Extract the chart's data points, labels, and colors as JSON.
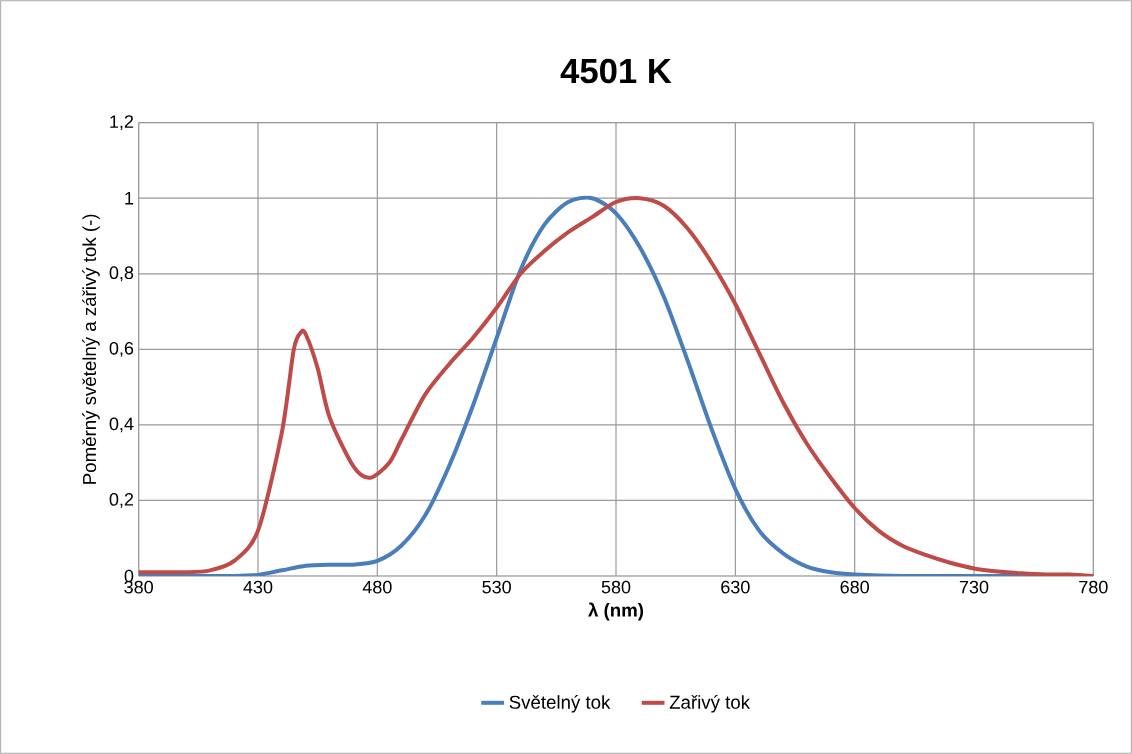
{
  "chart_data": {
    "type": "line",
    "title": "4501 K",
    "xlabel": "λ (nm)",
    "ylabel": "Poměrný světelný a zářivý tok (-)",
    "xlim": [
      380,
      780
    ],
    "xticks": [
      380,
      430,
      480,
      530,
      580,
      630,
      680,
      730,
      780
    ],
    "ylim": [
      0,
      1.2
    ],
    "yticks": [
      0,
      {
        "value": 0.2,
        "label": "0,2"
      },
      {
        "value": 0.4,
        "label": "0,4"
      },
      {
        "value": 0.6,
        "label": "0,6"
      },
      {
        "value": 0.8,
        "label": "0,8"
      },
      1,
      {
        "value": 1.2,
        "label": "1,2"
      }
    ],
    "grid": true,
    "legend": "bottom",
    "marker": "none",
    "line_style": "solid",
    "series": [
      {
        "name": "Světelný tok",
        "color": "#4a7ebb",
        "x": [
          380,
          400,
          420,
          430,
          440,
          450,
          460,
          470,
          480,
          490,
          500,
          510,
          520,
          530,
          540,
          550,
          560,
          570,
          580,
          590,
          600,
          610,
          620,
          630,
          640,
          650,
          660,
          670,
          680,
          700,
          740,
          780
        ],
        "values": [
          0,
          0,
          0,
          0.003,
          0.015,
          0.027,
          0.03,
          0.03,
          0.04,
          0.08,
          0.16,
          0.29,
          0.45,
          0.63,
          0.81,
          0.93,
          0.99,
          1.0,
          0.96,
          0.87,
          0.74,
          0.57,
          0.39,
          0.23,
          0.12,
          0.06,
          0.025,
          0.01,
          0.004,
          0,
          0,
          0
        ]
      },
      {
        "name": "Zařivý tok",
        "color": "#be4b48",
        "x": [
          380,
          400,
          410,
          420,
          430,
          440,
          445,
          448,
          450,
          455,
          460,
          470,
          477,
          485,
          490,
          500,
          510,
          520,
          530,
          540,
          550,
          560,
          570,
          580,
          590,
          600,
          610,
          620,
          630,
          640,
          650,
          660,
          670,
          680,
          690,
          700,
          710,
          720,
          730,
          740,
          750,
          760,
          770,
          780
        ],
        "values": [
          0.01,
          0.01,
          0.015,
          0.04,
          0.12,
          0.38,
          0.6,
          0.645,
          0.64,
          0.55,
          0.42,
          0.29,
          0.26,
          0.3,
          0.36,
          0.48,
          0.56,
          0.63,
          0.71,
          0.8,
          0.86,
          0.91,
          0.95,
          0.99,
          1.0,
          0.98,
          0.92,
          0.83,
          0.72,
          0.59,
          0.46,
          0.35,
          0.26,
          0.18,
          0.12,
          0.08,
          0.055,
          0.035,
          0.02,
          0.012,
          0.007,
          0.004,
          0.004,
          0
        ]
      }
    ]
  }
}
